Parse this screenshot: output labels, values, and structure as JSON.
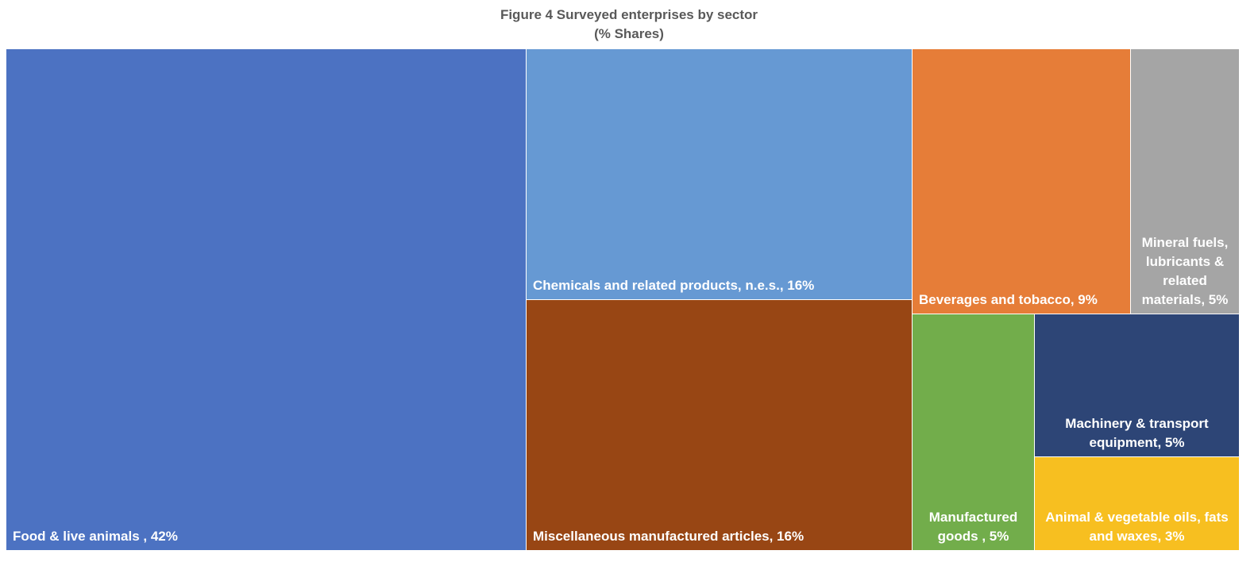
{
  "chart_data": {
    "type": "treemap",
    "title": "Figure 4 Surveyed enterprises by sector",
    "subtitle": "(% Shares)",
    "unit": "%",
    "items": [
      {
        "id": "food",
        "label_lines": [
          "Food & live animals , 42%"
        ],
        "name": "Food & live animals",
        "value": 42,
        "color": "#4C72C2",
        "align": "start",
        "valign": "bottom"
      },
      {
        "id": "chemicals",
        "label_lines": [
          "Chemicals and related products, n.e.s., 16%"
        ],
        "name": "Chemicals and related products, n.e.s.",
        "value": 16,
        "color": "#6699D3",
        "align": "start",
        "valign": "bottom"
      },
      {
        "id": "misc",
        "label_lines": [
          "Miscellaneous manufactured articles, 16%"
        ],
        "name": "Miscellaneous manufactured articles",
        "value": 16,
        "color": "#984614",
        "align": "start",
        "valign": "bottom"
      },
      {
        "id": "beverages",
        "label_lines": [
          "Beverages and tobacco, 9%"
        ],
        "name": "Beverages and tobacco",
        "value": 9,
        "color": "#E67D38",
        "align": "start",
        "valign": "bottom"
      },
      {
        "id": "mineral",
        "label_lines": [
          "Mineral fuels,",
          "lubricants &",
          "related",
          "materials, 5%"
        ],
        "name": "Mineral fuels, lubricants & related materials",
        "value": 5,
        "color": "#A5A5A5",
        "align": "middle",
        "valign": "bottom"
      },
      {
        "id": "manufactured",
        "label_lines": [
          "Manufactured",
          "goods , 5%"
        ],
        "name": "Manufactured goods",
        "value": 5,
        "color": "#72AD4B",
        "align": "middle",
        "valign": "bottom"
      },
      {
        "id": "machinery",
        "label_lines": [
          "Machinery & transport",
          "equipment, 5%"
        ],
        "name": "Machinery & transport equipment",
        "value": 5,
        "color": "#2D4576",
        "align": "middle",
        "valign": "bottom"
      },
      {
        "id": "oils",
        "label_lines": [
          "Animal & vegetable oils, fats",
          "and waxes, 3%"
        ],
        "name": "Animal & vegetable oils, fats and waxes",
        "value": 3,
        "color": "#F7BF20",
        "align": "middle",
        "valign": "bottom"
      }
    ]
  }
}
